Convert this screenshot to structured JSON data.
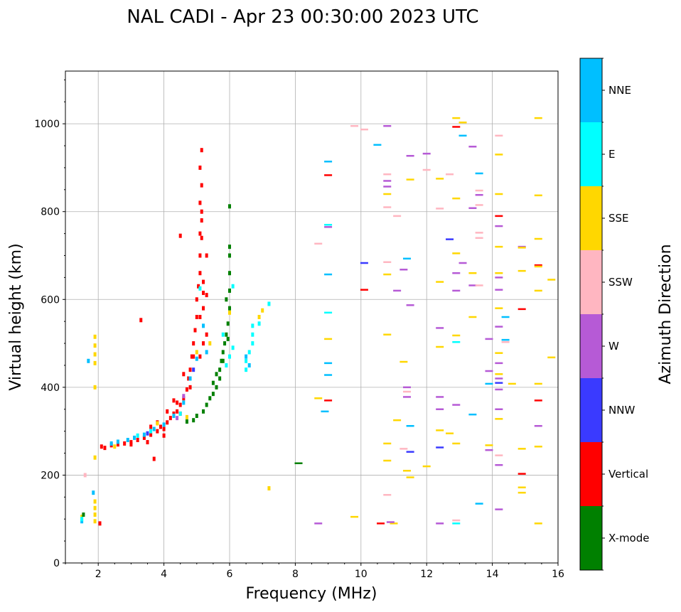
{
  "chart_data": {
    "type": "scatter",
    "title": "NAL CADI - Apr 23 00:30:00 2023 UTC",
    "xlabel": "Frequency (MHz)",
    "ylabel": "Virtual height (km)",
    "xlim": [
      1,
      16
    ],
    "ylim": [
      0,
      1120
    ],
    "xticks": [
      2,
      4,
      6,
      8,
      10,
      12,
      14,
      16
    ],
    "yticks": [
      0,
      200,
      400,
      600,
      800,
      1000
    ],
    "grid": true,
    "colorbar": {
      "label": "Azimuth Direction",
      "categories": [
        "X-mode",
        "Vertical",
        "NNW",
        "W",
        "SSW",
        "SSE",
        "E",
        "NNE"
      ],
      "colors": [
        "#008000",
        "#ff0000",
        "#3a3aff",
        "#b65ad6",
        "#ffb6c1",
        "#ffd700",
        "#00ffff",
        "#00bfff"
      ]
    },
    "point_format": [
      "frequency_mhz",
      "height_km",
      "direction_index"
    ],
    "points": [
      [
        2.1,
        265,
        1
      ],
      [
        2.2,
        262,
        1
      ],
      [
        2.4,
        268,
        1
      ],
      [
        2.6,
        270,
        1
      ],
      [
        2.8,
        272,
        1
      ],
      [
        3.0,
        275,
        1
      ],
      [
        3.2,
        280,
        1
      ],
      [
        3.4,
        285,
        1
      ],
      [
        3.6,
        292,
        1
      ],
      [
        3.8,
        300,
        1
      ],
      [
        3.9,
        310,
        1
      ],
      [
        4.0,
        305,
        1
      ],
      [
        4.1,
        320,
        1
      ],
      [
        4.2,
        330,
        1
      ],
      [
        4.3,
        340,
        1
      ],
      [
        4.4,
        345,
        1
      ],
      [
        4.5,
        360,
        1
      ],
      [
        4.6,
        375,
        1
      ],
      [
        4.7,
        395,
        1
      ],
      [
        4.75,
        420,
        1
      ],
      [
        4.8,
        440,
        1
      ],
      [
        4.85,
        470,
        1
      ],
      [
        4.9,
        500,
        1
      ],
      [
        4.95,
        530,
        1
      ],
      [
        5.0,
        560,
        1
      ],
      [
        5.0,
        600,
        1
      ],
      [
        5.05,
        630,
        1
      ],
      [
        5.1,
        660,
        1
      ],
      [
        5.1,
        700,
        1
      ],
      [
        5.15,
        740,
        1
      ],
      [
        5.15,
        780,
        1
      ],
      [
        5.1,
        820,
        1
      ],
      [
        5.15,
        860,
        1
      ],
      [
        5.1,
        900,
        1
      ],
      [
        5.15,
        940,
        1
      ],
      [
        3.3,
        553,
        1
      ],
      [
        3.7,
        237,
        1
      ],
      [
        4.5,
        745,
        1
      ],
      [
        5.3,
        700,
        1
      ],
      [
        5.3,
        610,
        1
      ],
      [
        4.9,
        470,
        1
      ],
      [
        4.8,
        400,
        1
      ],
      [
        4.5,
        340,
        1
      ],
      [
        4.0,
        290,
        1
      ],
      [
        3.5,
        275,
        1
      ],
      [
        3.0,
        270,
        1
      ],
      [
        5.2,
        580,
        1
      ],
      [
        5.2,
        500,
        1
      ],
      [
        5.3,
        520,
        1
      ],
      [
        5.1,
        560,
        1
      ],
      [
        4.6,
        430,
        1
      ],
      [
        4.4,
        365,
        1
      ],
      [
        3.6,
        310,
        1
      ],
      [
        3.8,
        320,
        1
      ],
      [
        4.1,
        345,
        1
      ],
      [
        4.3,
        370,
        1
      ],
      [
        5.1,
        470,
        1
      ],
      [
        5.2,
        615,
        1
      ],
      [
        5.1,
        750,
        1
      ],
      [
        5.15,
        800,
        1
      ],
      [
        5.2,
        640,
        1
      ],
      [
        2.05,
        90,
        1
      ],
      [
        2.6,
        276,
        7
      ],
      [
        2.9,
        280,
        7
      ],
      [
        3.1,
        285,
        7
      ],
      [
        3.4,
        292,
        7
      ],
      [
        3.7,
        305,
        7
      ],
      [
        4.0,
        315,
        7
      ],
      [
        4.3,
        335,
        7
      ],
      [
        4.6,
        365,
        7
      ],
      [
        4.8,
        420,
        7
      ],
      [
        5.0,
        465,
        7
      ],
      [
        5.2,
        540,
        7
      ],
      [
        5.3,
        480,
        7
      ],
      [
        2.4,
        272,
        7
      ],
      [
        3.2,
        290,
        6
      ],
      [
        3.6,
        300,
        6
      ],
      [
        4.5,
        340,
        6
      ],
      [
        5.1,
        625,
        6
      ],
      [
        2.5,
        265,
        5
      ],
      [
        3.8,
        318,
        5
      ],
      [
        4.7,
        332,
        5
      ],
      [
        5.0,
        480,
        5
      ],
      [
        5.4,
        500,
        5
      ],
      [
        6.0,
        570,
        5
      ],
      [
        6.9,
        560,
        5
      ],
      [
        7.0,
        575,
        5
      ],
      [
        3.5,
        295,
        2
      ],
      [
        4.4,
        330,
        3
      ],
      [
        4.9,
        440,
        2
      ],
      [
        4.6,
        380,
        3
      ],
      [
        4.7,
        322,
        0
      ],
      [
        4.9,
        325,
        0
      ],
      [
        5.0,
        335,
        0
      ],
      [
        5.2,
        345,
        0
      ],
      [
        5.3,
        360,
        0
      ],
      [
        5.4,
        375,
        0
      ],
      [
        5.5,
        385,
        0
      ],
      [
        5.6,
        400,
        0
      ],
      [
        5.7,
        420,
        0
      ],
      [
        5.7,
        440,
        0
      ],
      [
        5.75,
        460,
        0
      ],
      [
        5.8,
        480,
        0
      ],
      [
        5.85,
        500,
        0
      ],
      [
        5.9,
        520,
        0
      ],
      [
        5.95,
        545,
        0
      ],
      [
        6.0,
        580,
        0
      ],
      [
        6.0,
        620,
        0
      ],
      [
        6.0,
        660,
        0
      ],
      [
        6.0,
        700,
        0
      ],
      [
        6.0,
        720,
        0
      ],
      [
        6.0,
        812,
        0
      ],
      [
        5.9,
        600,
        0
      ],
      [
        5.8,
        460,
        0
      ],
      [
        5.5,
        410,
        0
      ],
      [
        5.6,
        430,
        0
      ],
      [
        5.95,
        510,
        0
      ],
      [
        5.9,
        450,
        6
      ],
      [
        6.0,
        470,
        6
      ],
      [
        6.1,
        490,
        6
      ],
      [
        6.5,
        440,
        6
      ],
      [
        6.5,
        460,
        6
      ],
      [
        6.6,
        480,
        6
      ],
      [
        6.7,
        500,
        6
      ],
      [
        6.7,
        520,
        6
      ],
      [
        6.7,
        540,
        6
      ],
      [
        6.9,
        545,
        6
      ],
      [
        7.2,
        590,
        6
      ],
      [
        6.1,
        630,
        6
      ],
      [
        5.8,
        520,
        6
      ],
      [
        6.5,
        470,
        7
      ],
      [
        6.6,
        450,
        7
      ],
      [
        1.5,
        95,
        7
      ],
      [
        1.5,
        105,
        5
      ],
      [
        1.55,
        110,
        0
      ],
      [
        1.5,
        100,
        6
      ],
      [
        1.9,
        95,
        5
      ],
      [
        1.9,
        110,
        5
      ],
      [
        1.9,
        125,
        5
      ],
      [
        1.9,
        140,
        5
      ],
      [
        1.85,
        160,
        7
      ],
      [
        1.9,
        400,
        5
      ],
      [
        1.9,
        455,
        5
      ],
      [
        1.9,
        475,
        5
      ],
      [
        1.9,
        495,
        5
      ],
      [
        1.9,
        515,
        5
      ],
      [
        1.7,
        460,
        7
      ],
      [
        1.9,
        240,
        5
      ],
      [
        1.6,
        200,
        4
      ],
      [
        9.0,
        914,
        7
      ],
      [
        9.0,
        883,
        1
      ],
      [
        9.0,
        770,
        6
      ],
      [
        9.0,
        765,
        3
      ],
      [
        9.0,
        657,
        7
      ],
      [
        9.0,
        570,
        6
      ],
      [
        9.0,
        510,
        5
      ],
      [
        9.0,
        455,
        7
      ],
      [
        9.0,
        428,
        7
      ],
      [
        9.0,
        370,
        1
      ],
      [
        8.7,
        727,
        4
      ],
      [
        8.7,
        375,
        5
      ],
      [
        8.7,
        90,
        3
      ],
      [
        8.9,
        345,
        7
      ],
      [
        9.8,
        995,
        4
      ],
      [
        9.8,
        105,
        5
      ],
      [
        10.1,
        987,
        4
      ],
      [
        10.1,
        683,
        2
      ],
      [
        10.1,
        622,
        1
      ],
      [
        10.5,
        952,
        7
      ],
      [
        10.8,
        995,
        3
      ],
      [
        10.8,
        885,
        4
      ],
      [
        10.8,
        870,
        3
      ],
      [
        10.8,
        857,
        3
      ],
      [
        10.8,
        840,
        5
      ],
      [
        10.8,
        810,
        4
      ],
      [
        10.8,
        685,
        4
      ],
      [
        10.8,
        657,
        5
      ],
      [
        10.8,
        520,
        5
      ],
      [
        10.8,
        272,
        5
      ],
      [
        10.8,
        233,
        5
      ],
      [
        10.8,
        155,
        4
      ],
      [
        11.1,
        790,
        4
      ],
      [
        11.1,
        620,
        3
      ],
      [
        11.1,
        325,
        5
      ],
      [
        11.3,
        668,
        3
      ],
      [
        11.3,
        458,
        5
      ],
      [
        11.3,
        260,
        4
      ],
      [
        11.4,
        693,
        7
      ],
      [
        11.4,
        400,
        3
      ],
      [
        11.4,
        390,
        4
      ],
      [
        11.4,
        378,
        3
      ],
      [
        11.4,
        210,
        5
      ],
      [
        11.5,
        927,
        3
      ],
      [
        11.5,
        873,
        5
      ],
      [
        11.5,
        587,
        3
      ],
      [
        11.5,
        312,
        7
      ],
      [
        11.5,
        253,
        2
      ],
      [
        11.5,
        195,
        5
      ],
      [
        12.0,
        932,
        3
      ],
      [
        12.0,
        895,
        4
      ],
      [
        12.0,
        220,
        5
      ],
      [
        12.4,
        875,
        5
      ],
      [
        12.4,
        807,
        4
      ],
      [
        12.4,
        640,
        5
      ],
      [
        12.4,
        535,
        3
      ],
      [
        12.4,
        492,
        5
      ],
      [
        12.4,
        378,
        3
      ],
      [
        12.4,
        350,
        3
      ],
      [
        12.4,
        302,
        5
      ],
      [
        12.4,
        263,
        2
      ],
      [
        12.4,
        90,
        3
      ],
      [
        12.7,
        885,
        4
      ],
      [
        12.7,
        737,
        2
      ],
      [
        12.7,
        295,
        5
      ],
      [
        12.9,
        1013,
        5
      ],
      [
        12.9,
        993,
        1
      ],
      [
        12.9,
        830,
        5
      ],
      [
        12.9,
        705,
        5
      ],
      [
        12.9,
        660,
        3
      ],
      [
        12.9,
        620,
        3
      ],
      [
        12.9,
        518,
        5
      ],
      [
        12.9,
        503,
        6
      ],
      [
        12.9,
        360,
        3
      ],
      [
        12.9,
        272,
        5
      ],
      [
        12.9,
        90,
        6
      ],
      [
        13.1,
        1003,
        5
      ],
      [
        13.1,
        973,
        7
      ],
      [
        13.1,
        683,
        3
      ],
      [
        13.4,
        948,
        3
      ],
      [
        13.4,
        808,
        3
      ],
      [
        13.4,
        660,
        5
      ],
      [
        13.4,
        632,
        3
      ],
      [
        13.4,
        560,
        5
      ],
      [
        13.4,
        338,
        7
      ],
      [
        13.6,
        887,
        7
      ],
      [
        13.6,
        848,
        4
      ],
      [
        13.6,
        838,
        3
      ],
      [
        13.6,
        815,
        4
      ],
      [
        13.6,
        752,
        4
      ],
      [
        13.6,
        740,
        4
      ],
      [
        13.6,
        632,
        4
      ],
      [
        13.6,
        135,
        7
      ],
      [
        13.9,
        510,
        3
      ],
      [
        13.9,
        437,
        3
      ],
      [
        13.9,
        408,
        7
      ],
      [
        13.9,
        268,
        5
      ],
      [
        13.9,
        257,
        3
      ],
      [
        14.2,
        973,
        4
      ],
      [
        14.2,
        930,
        5
      ],
      [
        14.2,
        840,
        5
      ],
      [
        14.2,
        790,
        1
      ],
      [
        14.2,
        767,
        3
      ],
      [
        14.2,
        720,
        5
      ],
      [
        14.2,
        660,
        5
      ],
      [
        14.2,
        650,
        3
      ],
      [
        14.2,
        622,
        3
      ],
      [
        14.2,
        580,
        5
      ],
      [
        14.2,
        538,
        3
      ],
      [
        14.2,
        478,
        5
      ],
      [
        14.2,
        455,
        3
      ],
      [
        14.2,
        430,
        5
      ],
      [
        14.2,
        420,
        3
      ],
      [
        14.2,
        410,
        2
      ],
      [
        14.2,
        395,
        3
      ],
      [
        14.2,
        350,
        3
      ],
      [
        14.2,
        328,
        5
      ],
      [
        14.2,
        245,
        4
      ],
      [
        14.2,
        223,
        3
      ],
      [
        14.2,
        122,
        3
      ],
      [
        14.4,
        560,
        7
      ],
      [
        14.4,
        508,
        7
      ],
      [
        14.4,
        503,
        4
      ],
      [
        14.6,
        408,
        5
      ],
      [
        14.9,
        720,
        3
      ],
      [
        14.9,
        718,
        5
      ],
      [
        14.9,
        665,
        5
      ],
      [
        14.9,
        578,
        1
      ],
      [
        14.9,
        260,
        5
      ],
      [
        14.9,
        203,
        1
      ],
      [
        14.9,
        172,
        5
      ],
      [
        14.9,
        160,
        5
      ],
      [
        15.4,
        1013,
        5
      ],
      [
        15.4,
        837,
        5
      ],
      [
        15.4,
        738,
        5
      ],
      [
        15.4,
        678,
        1
      ],
      [
        15.4,
        675,
        5
      ],
      [
        15.4,
        620,
        5
      ],
      [
        15.4,
        408,
        5
      ],
      [
        15.4,
        370,
        1
      ],
      [
        15.4,
        312,
        3
      ],
      [
        15.4,
        265,
        5
      ],
      [
        15.4,
        90,
        5
      ],
      [
        15.8,
        645,
        5
      ],
      [
        15.8,
        468,
        5
      ],
      [
        8.1,
        227,
        0
      ],
      [
        7.2,
        170,
        5
      ],
      [
        10.6,
        90,
        1
      ],
      [
        11.0,
        90,
        5
      ],
      [
        10.9,
        93,
        3
      ],
      [
        12.9,
        97,
        4
      ]
    ]
  }
}
